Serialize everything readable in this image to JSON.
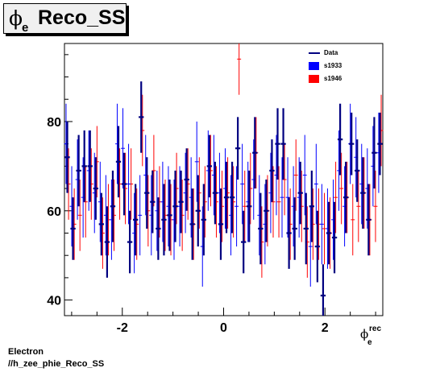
{
  "title": {
    "symbol": "ϕ",
    "subscript": "e",
    "text": "Reco_SS"
  },
  "x_title": {
    "symbol": "ϕ",
    "superscript": "rec",
    "subscript": "e"
  },
  "footer": {
    "line1": "Electron",
    "line2": "//h_zee_phie_Reco_SS"
  },
  "colors": {
    "data": "#000080",
    "s1933": "#0000ff",
    "s1946": "#ff0000"
  },
  "chart_data": {
    "type": "scatter",
    "title": "ϕe Reco_SS",
    "xlabel": "ϕe rec",
    "ylabel": "",
    "xlim": [
      -3.1416,
      3.1416
    ],
    "ylim": [
      36.5,
      97.5
    ],
    "x_ticks": [
      -2,
      0,
      2
    ],
    "y_ticks": [
      40,
      60,
      80
    ],
    "x_tick_labels": [
      "-2",
      "0",
      "2"
    ],
    "y_tick_labels": [
      "40",
      "60",
      "80"
    ],
    "legend": {
      "position": "top-right",
      "entries": [
        "Data",
        "s1933",
        "s1946"
      ]
    },
    "series": [
      {
        "name": "Data",
        "style": "errorbar",
        "values": [
          72,
          56,
          69,
          70,
          70,
          65,
          57,
          53,
          61,
          71,
          66,
          53,
          58,
          81,
          64,
          62,
          56,
          58,
          59,
          61,
          62,
          67,
          57,
          60,
          58,
          70,
          64,
          57,
          63,
          63,
          74,
          53,
          61,
          73,
          56,
          60,
          69,
          75,
          75,
          55,
          56,
          64,
          56,
          61,
          52,
          41,
          55,
          54,
          76,
          63,
          75,
          69,
          64,
          58,
          73,
          75
        ],
        "errors": [
          8,
          7,
          8,
          8,
          8,
          7,
          7,
          8,
          8,
          8,
          7,
          7,
          8,
          8,
          8,
          7,
          7,
          8,
          8,
          8,
          7,
          7,
          8,
          8,
          8,
          7,
          7,
          8,
          8,
          8,
          7,
          7,
          8,
          8,
          8,
          7,
          7,
          8,
          8,
          8,
          7,
          7,
          8,
          8,
          8,
          7,
          7,
          8,
          8,
          8,
          7,
          7,
          8,
          8,
          8,
          7
        ]
      },
      {
        "name": "s1933",
        "style": "errorbar",
        "values": [
          75,
          61,
          67,
          63,
          69,
          64,
          62,
          59,
          58,
          75,
          74,
          66,
          55,
          59,
          68,
          59,
          60,
          62,
          61,
          58,
          61,
          64,
          63,
          71,
          52,
          69,
          68,
          64,
          65,
          59,
          61,
          66,
          62,
          67,
          59,
          57,
          64,
          68,
          63,
          63,
          61,
          63,
          68,
          52,
          66,
          57,
          56,
          58,
          69,
          61,
          75,
          72,
          66,
          65,
          70,
          73
        ],
        "errors": [
          9,
          9,
          9,
          9,
          9,
          9,
          9,
          9,
          9,
          9,
          9,
          9,
          9,
          9,
          9,
          9,
          9,
          9,
          9,
          9,
          9,
          9,
          9,
          9,
          9,
          9,
          9,
          9,
          9,
          9,
          9,
          9,
          9,
          9,
          9,
          9,
          9,
          9,
          9,
          9,
          9,
          9,
          9,
          9,
          9,
          9,
          9,
          9,
          9,
          9,
          9,
          9,
          9,
          9,
          9,
          9
        ]
      },
      {
        "name": "s1946",
        "style": "errorbar",
        "values": [
          66,
          57,
          59,
          62,
          66,
          71,
          55,
          58,
          59,
          66,
          65,
          66,
          57,
          78,
          60,
          69,
          62,
          59,
          58,
          65,
          59,
          66,
          57,
          64,
          62,
          69,
          62,
          61,
          64,
          62,
          94,
          61,
          65,
          73,
          53,
          60,
          62,
          62,
          67,
          57,
          68,
          61,
          53,
          57,
          57,
          56,
          55,
          63,
          65,
          63,
          58,
          61,
          64,
          58,
          61,
          78
        ],
        "errors": [
          8,
          8,
          8,
          8,
          8,
          8,
          8,
          8,
          8,
          8,
          8,
          8,
          8,
          8,
          8,
          8,
          8,
          8,
          8,
          8,
          8,
          8,
          8,
          8,
          8,
          8,
          8,
          8,
          8,
          8,
          8,
          8,
          8,
          8,
          8,
          8,
          8,
          8,
          8,
          8,
          8,
          8,
          8,
          8,
          8,
          8,
          8,
          8,
          8,
          8,
          8,
          8,
          8,
          8,
          8,
          8
        ]
      }
    ]
  }
}
